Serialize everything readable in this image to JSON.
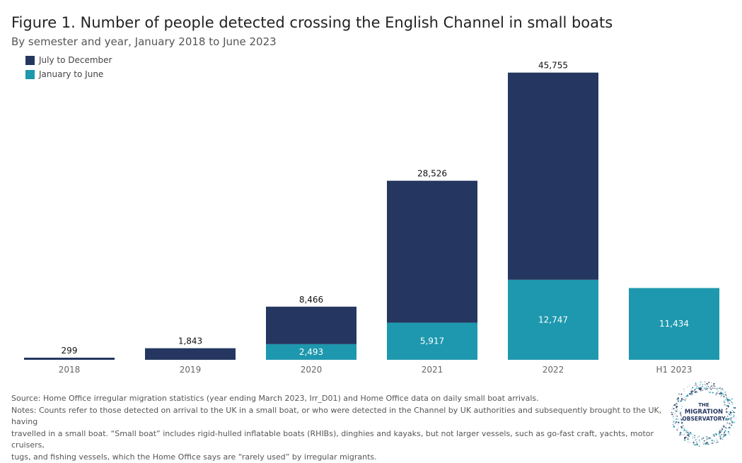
{
  "header": {
    "title": "Figure 1. Number of people detected crossing the English Channel in small boats",
    "subtitle": "By semester and year, January 2018 to June 2023"
  },
  "legend": [
    {
      "label": "July to December",
      "color": "#253760"
    },
    {
      "label": "January to June",
      "color": "#1e98ae"
    }
  ],
  "chart_data": {
    "type": "bar",
    "stacked": true,
    "title": "Figure 1. Number of people detected crossing the English Channel in small boats",
    "subtitle": "By semester and year, January 2018 to June 2023",
    "categories": [
      "2018",
      "2019",
      "2020",
      "2021",
      "2022",
      "H1 2023"
    ],
    "series": [
      {
        "name": "January to June",
        "color": "#1e98ae",
        "values": [
          0,
          0,
          2493,
          5917,
          12747,
          11434
        ],
        "labels": [
          "",
          "",
          "2,493",
          "5,917",
          "12,747",
          "11,434"
        ]
      },
      {
        "name": "July to December",
        "color": "#253760",
        "values": [
          299,
          1843,
          5973,
          22609,
          33008,
          0
        ]
      }
    ],
    "totals": [
      299,
      1843,
      8466,
      28526,
      45755,
      null
    ],
    "total_labels": [
      "299",
      "1,843",
      "8,466",
      "28,526",
      "45,755",
      ""
    ],
    "xlabel": "",
    "ylabel": "",
    "ylim": [
      0,
      50000
    ],
    "legend_position": "top-left",
    "grid": false
  },
  "notes": {
    "source": "Source: Home Office irregular migration statistics (year ending March 2023, Irr_D01) and Home Office data on daily small boat arrivals.",
    "notes_line1": "Notes: Counts refer to those detected on arrival to the UK in a small boat, or who were detected in the Channel by UK authorities and subsequently brought to the UK, having",
    "notes_line2": "travelled in a small boat. “Small boat” includes rigid-hulled inflatable boats (RHIBs), dinghies and kayaks, but not larger vessels, such as go-fast craft, yachts, motor cruisers,",
    "notes_line3": "tugs, and fishing vessels, which the Home Office says are “rarely used” by irregular migrants."
  },
  "logo": {
    "line1": "THE",
    "line2": "MIGRATION",
    "line3": "OBSERVATORY"
  }
}
